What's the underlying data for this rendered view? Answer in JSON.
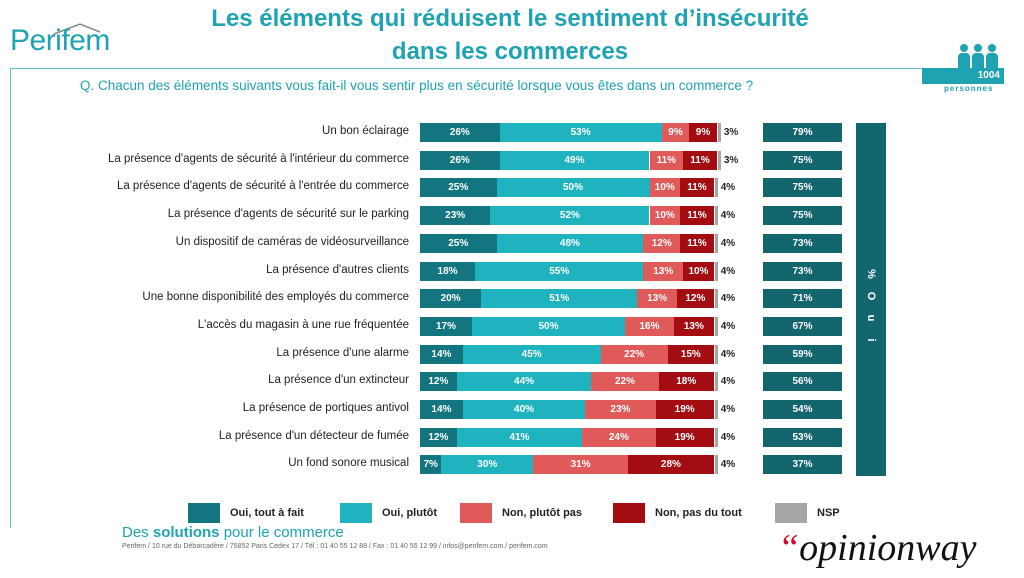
{
  "header": {
    "logo": "Perifem",
    "title_line1": "Les éléments qui réduisent le sentiment d’insécurité",
    "title_line2": "dans les commerces",
    "question": "Q. Chacun des éléments suivants vous fait-il vous sentir plus en sécurité lorsque vous êtes dans un commerce ?",
    "sample_count": "1004",
    "sample_label": "personnes"
  },
  "chart_data": {
    "type": "bar",
    "orientation": "horizontal",
    "stacked": true,
    "categories": [
      "Un bon éclairage",
      "La présence d'agents de sécurité à l'intérieur du commerce",
      "La présence d'agents de sécurité à l'entrée du commerce",
      "La présence d'agents de sécurité sur le parking",
      "Un dispositif de caméras de vidéosurveillance",
      "La présence d'autres clients",
      "Une bonne disponibilité des employés du commerce",
      "L'accès du magasin à une rue fréquentée",
      "La présence d'une alarme",
      "La présence d'un extincteur",
      "La présence de portiques antivol",
      "La présence d'un détecteur de fumée",
      "Un fond sonore musical"
    ],
    "series": [
      {
        "name": "Oui, tout à fait",
        "color": "#13757f",
        "values": [
          26,
          26,
          25,
          23,
          25,
          18,
          20,
          17,
          14,
          12,
          14,
          12,
          7
        ]
      },
      {
        "name": "Oui, plutôt",
        "color": "#1fb3bf",
        "values": [
          53,
          49,
          50,
          52,
          48,
          55,
          51,
          50,
          45,
          44,
          40,
          41,
          30
        ]
      },
      {
        "name": "Non, plutôt pas",
        "color": "#e05a5a",
        "values": [
          9,
          11,
          10,
          10,
          12,
          13,
          13,
          16,
          22,
          22,
          23,
          24,
          31
        ]
      },
      {
        "name": "Non, pas du tout",
        "color": "#a30d12",
        "values": [
          9,
          11,
          11,
          11,
          11,
          10,
          12,
          13,
          15,
          18,
          19,
          19,
          28
        ]
      },
      {
        "name": "NSP",
        "color": "#a6a6a6",
        "values": [
          3,
          3,
          4,
          4,
          4,
          4,
          4,
          4,
          4,
          4,
          4,
          4,
          4
        ]
      }
    ],
    "totals": {
      "name": "% Oui",
      "values": [
        79,
        75,
        75,
        75,
        73,
        73,
        71,
        67,
        59,
        56,
        54,
        53,
        37
      ]
    },
    "unit": "%",
    "xlim": [
      0,
      100
    ]
  },
  "oui_label": "% O u i",
  "footer": {
    "tag_prefix": "Des",
    "tag_bold": "solutions",
    "tag_suffix": "pour le commerce",
    "address": "Perifem / 10 rue du Débarcadère / 75852 Paris Cedex 17 / Tél : 01 40 55 12 88 / Fax : 01 40 55 12 99 / infos@perifem.com / perifem.com",
    "brand_quote": "“",
    "brand": "opinionway"
  }
}
